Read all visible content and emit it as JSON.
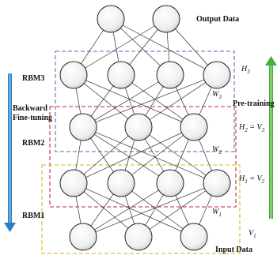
{
  "labels": {
    "output_data": "Output Data",
    "input_data": "Input Data",
    "rbm3": "RBM3",
    "rbm2": "RBM2",
    "rbm1": "RBM1",
    "backward": "Backward",
    "fine_tuning": "Fine-tuning",
    "pre_training": "Pre-training"
  },
  "math": {
    "h3": {
      "base": "H",
      "sub": "3"
    },
    "h2": {
      "base": "H",
      "sub": "2",
      "eq": " = ",
      "base2": "V",
      "sub2": "3"
    },
    "h1": {
      "base": "H",
      "sub": "1",
      "eq": " = ",
      "base2": "V",
      "sub2": "2"
    },
    "v1": {
      "base": "V",
      "sub": "1"
    },
    "w3": {
      "base": "W",
      "sub": "3"
    },
    "w2": {
      "base": "W",
      "sub": "2"
    },
    "w1": {
      "base": "W",
      "sub": "1"
    }
  },
  "layer_sizes": [
    3,
    4,
    3,
    4,
    2
  ],
  "colors": {
    "rbm3_box": "#6a8cc0",
    "rbm2_box": "#d04a6a",
    "rbm1_box": "#e0c040",
    "left_arrow": "#3f8fd0",
    "right_arrow": "#4fbf3f"
  }
}
